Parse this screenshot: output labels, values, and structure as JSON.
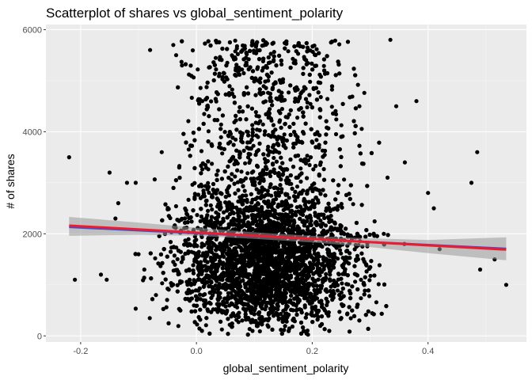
{
  "chart_data": {
    "type": "scatter",
    "title": "Scatterplot of shares vs global_sentiment_polarity",
    "xlabel": "global_sentiment_polarity",
    "ylabel": "# of shares",
    "xlim": [
      -0.26,
      0.57
    ],
    "ylim": [
      -120,
      6100
    ],
    "x_ticks": [
      -0.2,
      0.0,
      0.2,
      0.4
    ],
    "x_tick_labels": [
      "-0.2",
      "0.0",
      "0.2",
      "0.4"
    ],
    "y_ticks": [
      0,
      2000,
      4000,
      6000
    ],
    "y_tick_labels": [
      "0",
      "2000",
      "4000",
      "6000"
    ],
    "grid": true,
    "background": "#ebebeb",
    "point_color": "#000000",
    "point_count_estimate": 6000,
    "outliers": [
      {
        "x": -0.22,
        "y": 3500
      },
      {
        "x": -0.21,
        "y": 1100
      },
      {
        "x": -0.165,
        "y": 1200
      },
      {
        "x": -0.155,
        "y": 1100
      },
      {
        "x": -0.15,
        "y": 3200
      },
      {
        "x": -0.14,
        "y": 2300
      },
      {
        "x": -0.135,
        "y": 2600
      },
      {
        "x": -0.12,
        "y": 3000
      },
      {
        "x": -0.105,
        "y": 3000
      },
      {
        "x": -0.08,
        "y": 5600
      },
      {
        "x": -0.06,
        "y": 3600
      },
      {
        "x": -0.04,
        "y": 5700
      },
      {
        "x": -0.035,
        "y": 5500
      },
      {
        "x": -0.025,
        "y": 5300
      },
      {
        "x": 0.345,
        "y": 4500
      },
      {
        "x": 0.335,
        "y": 5800
      },
      {
        "x": 0.38,
        "y": 4600
      },
      {
        "x": 0.4,
        "y": 2800
      },
      {
        "x": 0.41,
        "y": 2500
      },
      {
        "x": 0.475,
        "y": 3000
      },
      {
        "x": 0.485,
        "y": 3600
      },
      {
        "x": 0.49,
        "y": 1300
      },
      {
        "x": 0.515,
        "y": 1500
      },
      {
        "x": 0.535,
        "y": 1000
      },
      {
        "x": 0.33,
        "y": 3100
      },
      {
        "x": 0.36,
        "y": 3400
      },
      {
        "x": 0.42,
        "y": 1700
      },
      {
        "x": -0.1,
        "y": 1600
      },
      {
        "x": -0.09,
        "y": 1300
      },
      {
        "x": -0.07,
        "y": 800
      }
    ],
    "series": [
      {
        "type": "lm",
        "color": "#3b4fd6",
        "x": [
          -0.22,
          0.535
        ],
        "y": [
          2130,
          1710
        ]
      },
      {
        "type": "smooth",
        "color": "#ee1b2e",
        "x": [
          -0.22,
          0.535
        ],
        "y": [
          2160,
          1690
        ]
      }
    ],
    "confidence_band": {
      "color": "#999999",
      "x": [
        -0.22,
        -0.1,
        0.0,
        0.1,
        0.2,
        0.3,
        0.4,
        0.535
      ],
      "ymin": [
        1960,
        1980,
        1960,
        1900,
        1830,
        1740,
        1620,
        1480
      ],
      "ymax": [
        2330,
        2220,
        2120,
        2030,
        1960,
        1910,
        1880,
        1930
      ]
    }
  }
}
